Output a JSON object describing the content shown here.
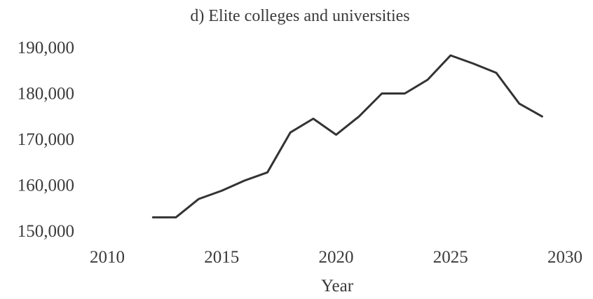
{
  "chart_data": {
    "type": "line",
    "title": "d) Elite colleges and universities",
    "xlabel": "Year",
    "ylabel": "",
    "xlim": [
      2010,
      2030
    ],
    "ylim": [
      150000,
      190000
    ],
    "x_ticks": [
      2010,
      2015,
      2020,
      2025,
      2030
    ],
    "y_ticks": [
      150000,
      160000,
      170000,
      180000,
      190000
    ],
    "x_tick_labels": [
      "2010",
      "2015",
      "2020",
      "2025",
      "2030"
    ],
    "y_tick_labels": [
      "150,000",
      "160,000",
      "170,000",
      "180,000",
      "190,000"
    ],
    "grid": false,
    "series": [
      {
        "color": "#333333",
        "x": [
          2012,
          2013,
          2014,
          2015,
          2016,
          2017,
          2018,
          2019,
          2020,
          2021,
          2022,
          2023,
          2024,
          2025,
          2026,
          2027,
          2028,
          2029
        ],
        "y": [
          153000,
          153000,
          157000,
          158800,
          161000,
          162800,
          171500,
          174500,
          171000,
          175000,
          180000,
          180000,
          183000,
          188300,
          186500,
          184500,
          177800,
          175000
        ]
      }
    ]
  }
}
